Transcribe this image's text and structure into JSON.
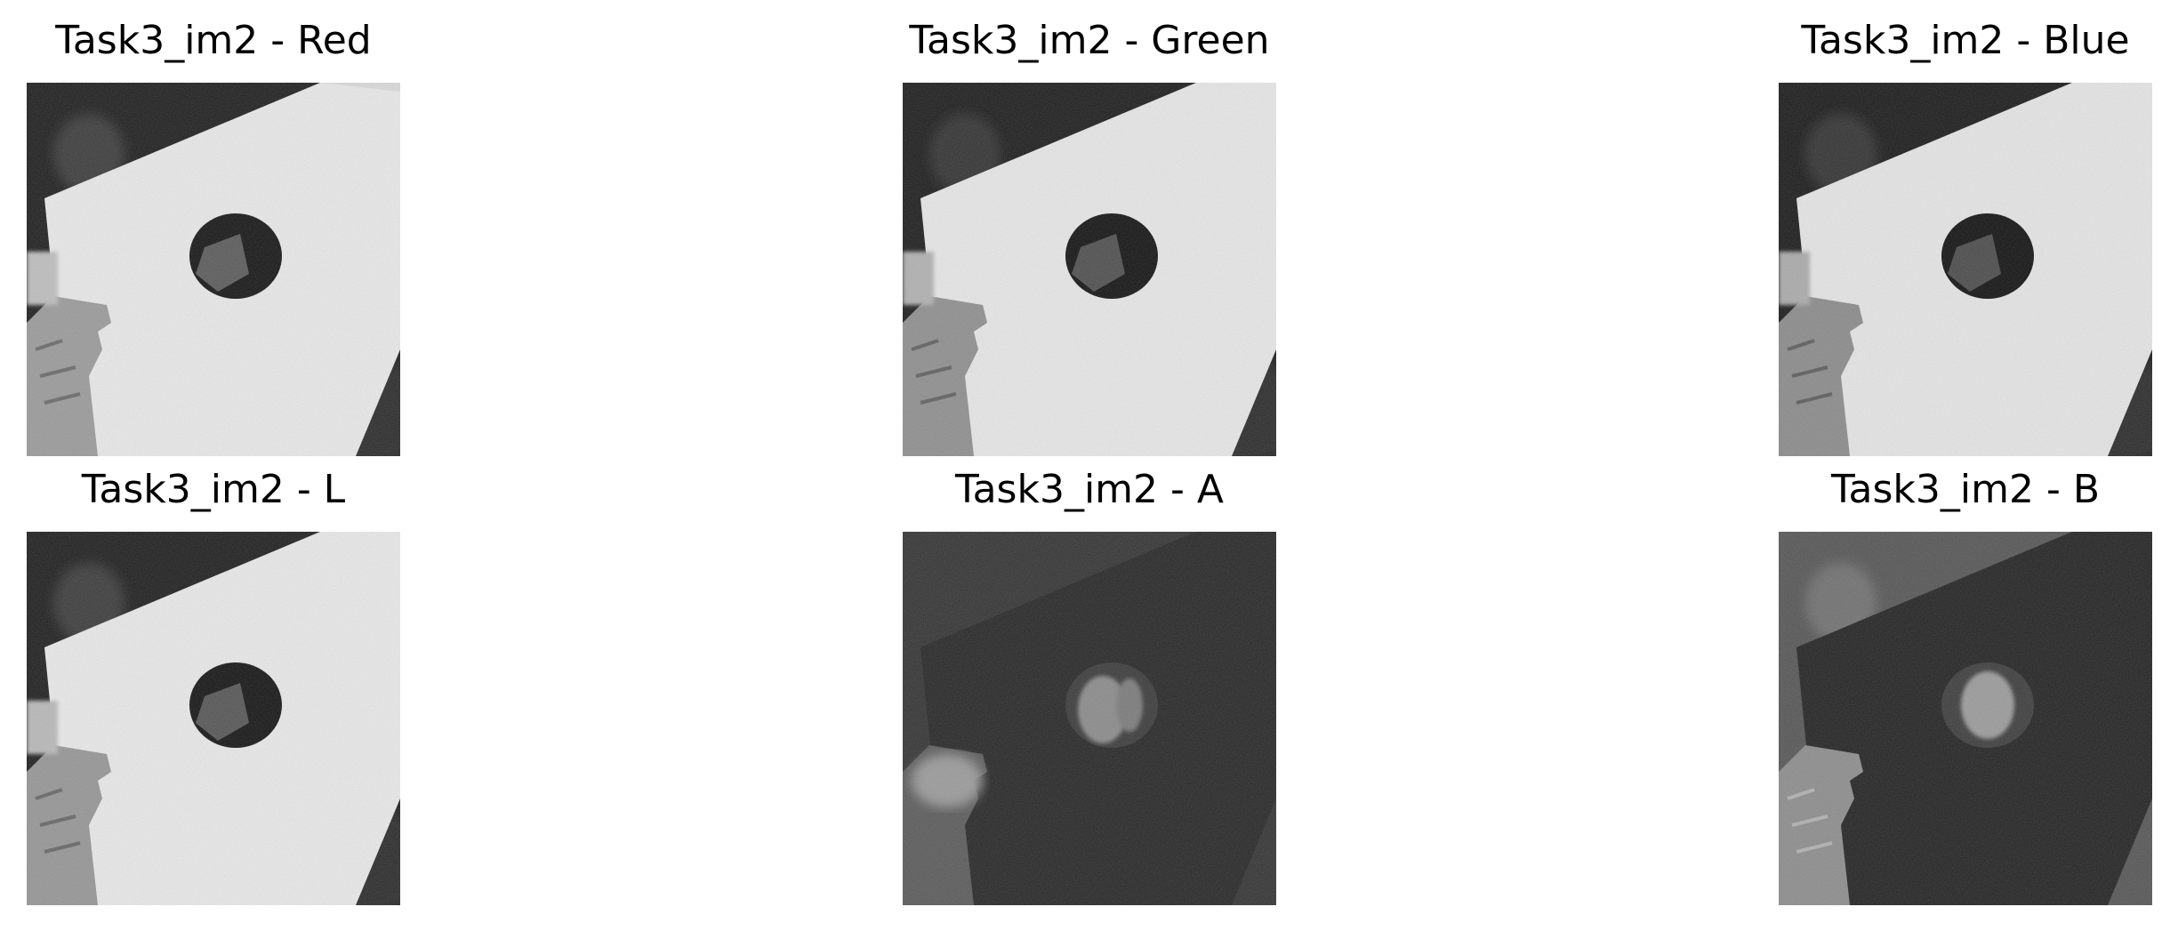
{
  "panels": [
    {
      "title": "Task3_im2 - Red",
      "channel": "red"
    },
    {
      "title": "Task3_im2 - Green",
      "channel": "green"
    },
    {
      "title": "Task3_im2 - Blue",
      "channel": "blue"
    },
    {
      "title": "Task3_im2 - L",
      "channel": "l"
    },
    {
      "title": "Task3_im2 - A",
      "channel": "a"
    },
    {
      "title": "Task3_im2 - B",
      "channel": "b"
    }
  ]
}
